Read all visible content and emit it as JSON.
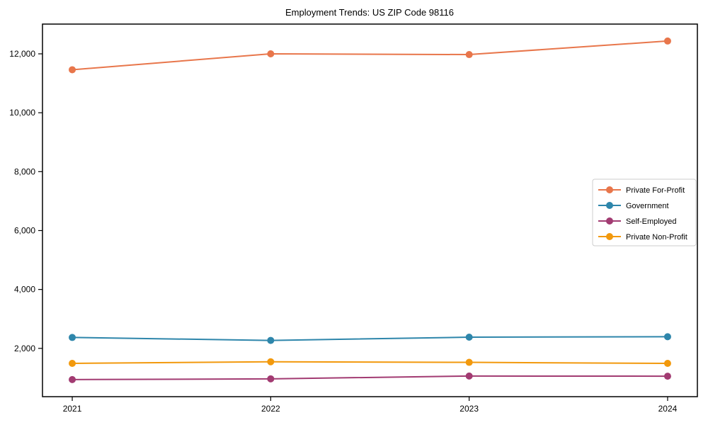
{
  "figure": {
    "title": "Employment Trends: US ZIP Code 98116"
  },
  "chart_data": {
    "type": "line",
    "title": "Employment Trends: US ZIP Code 98116",
    "xlabel": "",
    "ylabel": "",
    "x": [
      2021,
      2022,
      2023,
      2024
    ],
    "x_tick_labels": [
      "2021",
      "2022",
      "2023",
      "2024"
    ],
    "y_ticks": [
      2000,
      4000,
      6000,
      8000,
      10000,
      12000
    ],
    "y_tick_labels": [
      "2,000",
      "4,000",
      "6,000",
      "8,000",
      "10,000",
      "12,000"
    ],
    "xlim": [
      2020.85,
      2024.15
    ],
    "ylim": [
      360,
      13010
    ],
    "grid": false,
    "marker": "circle",
    "series": [
      {
        "name": "Private For-Profit",
        "color": "#E8764B",
        "values": [
          11460,
          12000,
          11975,
          12435
        ]
      },
      {
        "name": "Government",
        "color": "#2E86AB",
        "values": [
          2370,
          2270,
          2380,
          2395
        ]
      },
      {
        "name": "Self-Employed",
        "color": "#A23B72",
        "values": [
          940,
          965,
          1060,
          1055
        ]
      },
      {
        "name": "Private Non-Profit",
        "color": "#F2990D",
        "values": [
          1490,
          1545,
          1525,
          1490
        ]
      }
    ],
    "legend": {
      "position": "center right",
      "entries": [
        "Private For-Profit",
        "Government",
        "Self-Employed",
        "Private Non-Profit"
      ]
    },
    "frame_color": "#000000",
    "background_color": "#ffffff",
    "legend_border_color": "#cccccc"
  }
}
